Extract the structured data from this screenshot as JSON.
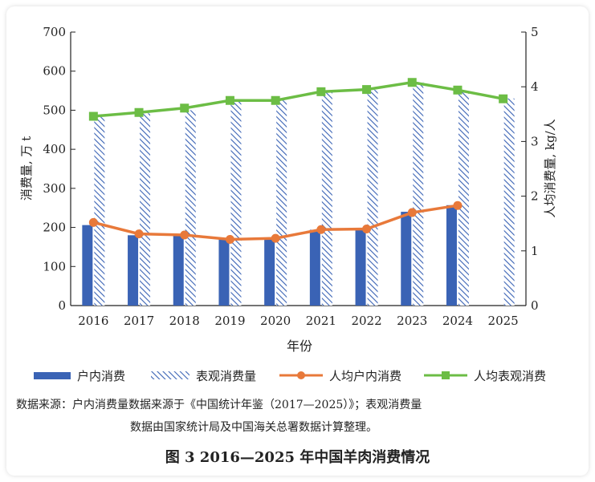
{
  "figure": {
    "title": "图 3 2016—2025 年中国羊肉消费情况",
    "source_line1": "数据来源：户内消费量数据来源于《中国统计年鉴（2017—2025）》；表观消费量",
    "source_line2": "数据由国家统计局及中国海关总署数据计算整理。"
  },
  "chart_data": {
    "type": "bar",
    "categories": [
      "2016",
      "2017",
      "2018",
      "2019",
      "2020",
      "2021",
      "2022",
      "2023",
      "2024",
      "2025"
    ],
    "xlabel": "年份",
    "ylabel_left": "消费量, 万 t",
    "ylabel_right": "人均消费量, kg/人",
    "ylim_left": [
      0,
      700
    ],
    "yticks_left": [
      0,
      100,
      200,
      300,
      400,
      500,
      600,
      700
    ],
    "ylim_right": [
      0,
      5
    ],
    "yticks_right": [
      0,
      1,
      2,
      3,
      4,
      5
    ],
    "series": [
      {
        "name": "户内消费",
        "kind": "bar",
        "axis": "left",
        "color": "#3a63b5",
        "values": [
          206,
          180,
          183,
          170,
          170,
          194,
          197,
          240,
          257,
          null
        ]
      },
      {
        "name": "表观消费量",
        "kind": "bar-hatched",
        "axis": "left",
        "color": "#3a63b5",
        "values": [
          485,
          492,
          500,
          525,
          526,
          548,
          552,
          572,
          550,
          530
        ]
      },
      {
        "name": "人均户内消费",
        "kind": "line",
        "axis": "right",
        "color": "#e8793a",
        "values": [
          1.52,
          1.31,
          1.29,
          1.21,
          1.23,
          1.39,
          1.4,
          1.7,
          1.83,
          null
        ]
      },
      {
        "name": "人均表观消费",
        "kind": "line",
        "axis": "right",
        "color": "#6cbd45",
        "values": [
          3.46,
          3.53,
          3.61,
          3.75,
          3.75,
          3.91,
          3.95,
          4.08,
          3.94,
          3.78
        ]
      }
    ]
  }
}
